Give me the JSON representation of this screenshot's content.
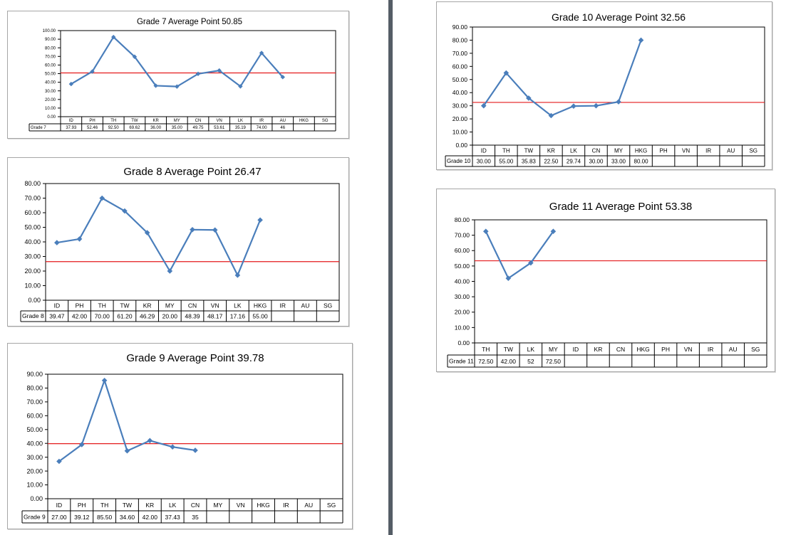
{
  "colors": {
    "series": "#4a7ebb",
    "average_line": "#e41a1c",
    "axis": "#000000",
    "divider": "#555d66"
  },
  "chart_data": [
    {
      "type": "line",
      "title": "Grade 7 Average Point 50.85",
      "average": 50.85,
      "series_name": "Grade 7",
      "categories": [
        "ID",
        "PH",
        "TH",
        "TW",
        "KR",
        "MY",
        "CN",
        "VN",
        "LK",
        "IR",
        "AU",
        "HKG",
        "SG"
      ],
      "values": [
        37.93,
        52.46,
        92.5,
        69.62,
        36.0,
        35.0,
        49.75,
        53.61,
        35.19,
        74.0,
        46,
        null,
        null
      ],
      "value_labels": [
        "37.93",
        "52.46",
        "92.50",
        "69.62",
        "36.00",
        "35.00",
        "49.75",
        "53.61",
        "35.19",
        "74.00",
        "46",
        "",
        ""
      ],
      "ylim": [
        0,
        100
      ],
      "yticks": [
        "0.00",
        "10.00",
        "20.00",
        "30.00",
        "40.00",
        "50.00",
        "60.00",
        "70.00",
        "80.00",
        "90.00",
        "100.00"
      ]
    },
    {
      "type": "line",
      "title": "Grade 8 Average Point 26.47",
      "average": 26.47,
      "series_name": "Grade 8",
      "categories": [
        "ID",
        "PH",
        "TH",
        "TW",
        "KR",
        "MY",
        "CN",
        "VN",
        "LK",
        "HKG",
        "IR",
        "AU",
        "SG"
      ],
      "values": [
        39.47,
        42.0,
        70.0,
        61.2,
        46.29,
        20.0,
        48.39,
        48.17,
        17.16,
        55.0,
        null,
        null,
        null
      ],
      "value_labels": [
        "39.47",
        "42.00",
        "70.00",
        "61.20",
        "46.29",
        "20.00",
        "48.39",
        "48.17",
        "17.16",
        "55.00",
        "",
        "",
        ""
      ],
      "ylim": [
        0,
        80
      ],
      "yticks": [
        "0.00",
        "10.00",
        "20.00",
        "30.00",
        "40.00",
        "50.00",
        "60.00",
        "70.00",
        "80.00"
      ]
    },
    {
      "type": "line",
      "title": "Grade 9 Average Point 39.78",
      "average": 39.78,
      "series_name": "Grade 9",
      "categories": [
        "ID",
        "PH",
        "TH",
        "TW",
        "KR",
        "LK",
        "CN",
        "MY",
        "VN",
        "HKG",
        "IR",
        "AU",
        "SG"
      ],
      "values": [
        27.0,
        39.12,
        85.5,
        34.6,
        42.0,
        37.43,
        35,
        null,
        null,
        null,
        null,
        null,
        null
      ],
      "value_labels": [
        "27.00",
        "39.12",
        "85.50",
        "34.60",
        "42.00",
        "37.43",
        "35",
        "",
        "",
        "",
        "",
        "",
        ""
      ],
      "ylim": [
        0,
        90
      ],
      "yticks": [
        "0.00",
        "10.00",
        "20.00",
        "30.00",
        "40.00",
        "50.00",
        "60.00",
        "70.00",
        "80.00",
        "90.00"
      ]
    },
    {
      "type": "line",
      "title": "Grade 10 Average Point 32.56",
      "average": 32.56,
      "series_name": "Grade 10",
      "categories": [
        "ID",
        "TH",
        "TW",
        "KR",
        "LK",
        "CN",
        "MY",
        "HKG",
        "PH",
        "VN",
        "IR",
        "AU",
        "SG"
      ],
      "values": [
        30.0,
        55.0,
        35.83,
        22.5,
        29.74,
        30.0,
        33.0,
        80.0,
        null,
        null,
        null,
        null,
        null
      ],
      "value_labels": [
        "30.00",
        "55.00",
        "35.83",
        "22.50",
        "29.74",
        "30.00",
        "33.00",
        "80.00",
        "",
        "",
        "",
        "",
        ""
      ],
      "ylim": [
        0,
        90
      ],
      "yticks": [
        "0.00",
        "10.00",
        "20.00",
        "30.00",
        "40.00",
        "50.00",
        "60.00",
        "70.00",
        "80.00",
        "90.00"
      ]
    },
    {
      "type": "line",
      "title": "Grade 11 Average Point 53.38",
      "average": 53.38,
      "series_name": "Grade 11",
      "categories": [
        "TH",
        "TW",
        "LK",
        "MY",
        "ID",
        "KR",
        "CN",
        "HKG",
        "PH",
        "VN",
        "IR",
        "AU",
        "SG"
      ],
      "values": [
        72.5,
        42.0,
        52,
        72.5,
        null,
        null,
        null,
        null,
        null,
        null,
        null,
        null,
        null
      ],
      "value_labels": [
        "72.50",
        "42.00",
        "52",
        "72.50",
        "",
        "",
        "",
        "",
        "",
        "",
        "",
        "",
        ""
      ],
      "ylim": [
        0,
        80
      ],
      "yticks": [
        "0.00",
        "10.00",
        "20.00",
        "30.00",
        "40.00",
        "50.00",
        "60.00",
        "70.00",
        "80.00"
      ]
    }
  ]
}
